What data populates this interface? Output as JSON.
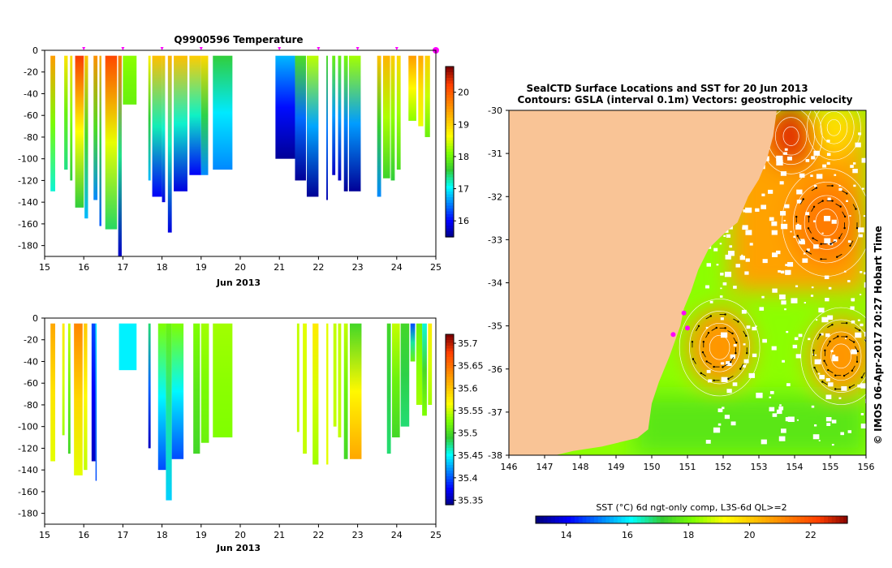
{
  "colors": {
    "land": "#f9c496",
    "axis": "#000000",
    "marker": "#ff00ff",
    "contour": "#ffffff",
    "vector": "#000000"
  },
  "colormap": [
    "#00007f",
    "#0000ff",
    "#007fff",
    "#00ffff",
    "#33cc33",
    "#7fff00",
    "#ffff00",
    "#ffbf00",
    "#ff7f00",
    "#ff3f00",
    "#7f0000"
  ],
  "chart_data": [
    {
      "id": "temperature",
      "type": "heatmap",
      "title": "Q9900596  Temperature",
      "xlabel": "Jun 2013",
      "x_ticks": [
        "15",
        "16",
        "17",
        "18",
        "19",
        "20",
        "21",
        "22",
        "23",
        "24",
        "25"
      ],
      "xlim": [
        15,
        25
      ],
      "ylim": [
        -190,
        0
      ],
      "y_ticks": [
        "0",
        "-20",
        "-40",
        "-60",
        "-80",
        "-100",
        "-120",
        "-140",
        "-160",
        "-180"
      ],
      "y_tick_values": [
        0,
        -20,
        -40,
        -60,
        -80,
        -100,
        -120,
        -140,
        -160,
        -180
      ],
      "colorbar": {
        "ticks": [
          "16",
          "17",
          "18",
          "19",
          "20"
        ],
        "tick_values": [
          16,
          17,
          18,
          19,
          20
        ],
        "range": [
          15.5,
          20.8
        ]
      },
      "profiles": [
        {
          "x": 15.15,
          "w": 0.12,
          "depth": -130,
          "top": 19.5,
          "bottom": 17.2
        },
        {
          "x": 15.5,
          "w": 0.09,
          "depth": -110,
          "top": 18.9,
          "bottom": 17.4
        },
        {
          "x": 15.65,
          "w": 0.06,
          "depth": -120,
          "top": 19.0,
          "bottom": 17.6
        },
        {
          "x": 15.78,
          "w": 0.22,
          "depth": -145,
          "top": 20.3,
          "bottom": 17.6
        },
        {
          "x": 16.02,
          "w": 0.09,
          "depth": -155,
          "top": 19.2,
          "bottom": 16.8
        },
        {
          "x": 16.25,
          "w": 0.1,
          "depth": -138,
          "top": 19.6,
          "bottom": 16.6
        },
        {
          "x": 16.4,
          "w": 0.05,
          "depth": -162,
          "top": 19.4,
          "bottom": 16.4
        },
        {
          "x": 16.55,
          "w": 0.3,
          "depth": -165,
          "top": 20.2,
          "bottom": 17.5
        },
        {
          "x": 16.88,
          "w": 0.09,
          "depth": -190,
          "top": 19.8,
          "bottom": 15.8
        },
        {
          "x": 17.0,
          "w": 0.35,
          "depth": -50,
          "top": 18.2,
          "bottom": 18.0
        },
        {
          "x": 17.65,
          "w": 0.06,
          "depth": -120,
          "top": 18.8,
          "bottom": 16.8
        },
        {
          "x": 17.75,
          "w": 0.25,
          "depth": -135,
          "top": 19.2,
          "bottom": 16.0
        },
        {
          "x": 18.0,
          "w": 0.08,
          "depth": -140,
          "top": 19.2,
          "bottom": 15.9
        },
        {
          "x": 18.15,
          "w": 0.1,
          "depth": -168,
          "top": 19.3,
          "bottom": 15.9
        },
        {
          "x": 18.3,
          "w": 0.35,
          "depth": -130,
          "top": 19.2,
          "bottom": 15.9
        },
        {
          "x": 18.7,
          "w": 0.3,
          "depth": -115,
          "top": 19.1,
          "bottom": 16.0
        },
        {
          "x": 19.0,
          "w": 0.18,
          "depth": -115,
          "top": 19.0,
          "bottom": 16.6
        },
        {
          "x": 19.3,
          "w": 0.5,
          "depth": -110,
          "top": 17.6,
          "bottom": 16.6
        },
        {
          "x": 20.9,
          "w": 0.5,
          "depth": -100,
          "top": 16.8,
          "bottom": 15.6
        },
        {
          "x": 21.4,
          "w": 0.28,
          "depth": -120,
          "top": 17.8,
          "bottom": 15.6
        },
        {
          "x": 21.7,
          "w": 0.3,
          "depth": -135,
          "top": 18.4,
          "bottom": 15.6
        },
        {
          "x": 22.2,
          "w": 0.04,
          "depth": -138,
          "top": 17.8,
          "bottom": 15.7
        },
        {
          "x": 22.35,
          "w": 0.08,
          "depth": -115,
          "top": 18.0,
          "bottom": 15.8
        },
        {
          "x": 22.5,
          "w": 0.08,
          "depth": -120,
          "top": 18.0,
          "bottom": 15.8
        },
        {
          "x": 22.65,
          "w": 0.1,
          "depth": -130,
          "top": 18.1,
          "bottom": 15.6
        },
        {
          "x": 22.78,
          "w": 0.3,
          "depth": -130,
          "top": 18.3,
          "bottom": 15.6
        },
        {
          "x": 23.5,
          "w": 0.1,
          "depth": -135,
          "top": 19.2,
          "bottom": 16.6
        },
        {
          "x": 23.65,
          "w": 0.18,
          "depth": -118,
          "top": 19.3,
          "bottom": 17.7
        },
        {
          "x": 23.85,
          "w": 0.1,
          "depth": -120,
          "top": 19.1,
          "bottom": 17.6
        },
        {
          "x": 24.0,
          "w": 0.1,
          "depth": -110,
          "top": 19.0,
          "bottom": 17.8
        },
        {
          "x": 24.3,
          "w": 0.2,
          "depth": -65,
          "top": 19.5,
          "bottom": 18.2
        },
        {
          "x": 24.55,
          "w": 0.13,
          "depth": -70,
          "top": 19.4,
          "bottom": 18.6
        },
        {
          "x": 24.72,
          "w": 0.13,
          "depth": -80,
          "top": 19.1,
          "bottom": 18.0
        }
      ],
      "markers": [
        16.0,
        17.0,
        18.0,
        19.0,
        21.0,
        22.0,
        23.0,
        24.0,
        25.0
      ]
    },
    {
      "id": "salinity",
      "type": "heatmap",
      "title": "",
      "xlabel": "Jun 2013",
      "x_ticks": [
        "15",
        "16",
        "17",
        "18",
        "19",
        "20",
        "21",
        "22",
        "23",
        "24",
        "25"
      ],
      "xlim": [
        15,
        25
      ],
      "ylim": [
        -190,
        0
      ],
      "y_ticks": [
        "0",
        "-20",
        "-40",
        "-60",
        "-80",
        "-100",
        "-120",
        "-140",
        "-160",
        "-180"
      ],
      "y_tick_values": [
        0,
        -20,
        -40,
        -60,
        -80,
        -100,
        -120,
        -140,
        -160,
        -180
      ],
      "colorbar": {
        "ticks": [
          "35.7",
          "35.65",
          "35.6",
          "35.55",
          "35.5",
          "35.45",
          "35.4",
          "35.35"
        ],
        "tick_values": [
          35.7,
          35.65,
          35.6,
          35.55,
          35.5,
          35.45,
          35.4,
          35.35
        ],
        "range": [
          35.34,
          35.72
        ]
      },
      "profiles": [
        {
          "x": 15.15,
          "w": 0.12,
          "depth": -132,
          "top": 35.62,
          "bottom": 35.56
        },
        {
          "x": 15.45,
          "w": 0.06,
          "depth": -108,
          "top": 35.58,
          "bottom": 35.54
        },
        {
          "x": 15.6,
          "w": 0.06,
          "depth": -125,
          "top": 35.55,
          "bottom": 35.5
        },
        {
          "x": 15.75,
          "w": 0.22,
          "depth": -145,
          "top": 35.64,
          "bottom": 35.56
        },
        {
          "x": 16.0,
          "w": 0.09,
          "depth": -140,
          "top": 35.6,
          "bottom": 35.55
        },
        {
          "x": 16.2,
          "w": 0.1,
          "depth": -132,
          "top": 35.4,
          "bottom": 35.36
        },
        {
          "x": 16.3,
          "w": 0.02,
          "depth": -150,
          "top": 35.45,
          "bottom": 35.4
        },
        {
          "x": 16.9,
          "w": 0.45,
          "depth": -48,
          "top": 35.45,
          "bottom": 35.45
        },
        {
          "x": 17.65,
          "w": 0.06,
          "depth": -120,
          "top": 35.48,
          "bottom": 35.36
        },
        {
          "x": 17.9,
          "w": 0.2,
          "depth": -140,
          "top": 35.53,
          "bottom": 35.4
        },
        {
          "x": 18.1,
          "w": 0.15,
          "depth": -168,
          "top": 35.52,
          "bottom": 35.44
        },
        {
          "x": 18.25,
          "w": 0.3,
          "depth": -130,
          "top": 35.53,
          "bottom": 35.4
        },
        {
          "x": 18.8,
          "w": 0.17,
          "depth": -125,
          "top": 35.53,
          "bottom": 35.5
        },
        {
          "x": 19.0,
          "w": 0.2,
          "depth": -115,
          "top": 35.54,
          "bottom": 35.52
        },
        {
          "x": 19.3,
          "w": 0.5,
          "depth": -110,
          "top": 35.54,
          "bottom": 35.53
        },
        {
          "x": 21.45,
          "w": 0.06,
          "depth": -105,
          "top": 35.55,
          "bottom": 35.55
        },
        {
          "x": 21.6,
          "w": 0.1,
          "depth": -125,
          "top": 35.56,
          "bottom": 35.55
        },
        {
          "x": 21.85,
          "w": 0.15,
          "depth": -135,
          "top": 35.58,
          "bottom": 35.54
        },
        {
          "x": 22.2,
          "w": 0.05,
          "depth": -135,
          "top": 35.56,
          "bottom": 35.56
        },
        {
          "x": 22.38,
          "w": 0.08,
          "depth": -100,
          "top": 35.55,
          "bottom": 35.55
        },
        {
          "x": 22.5,
          "w": 0.08,
          "depth": -110,
          "top": 35.55,
          "bottom": 35.55
        },
        {
          "x": 22.65,
          "w": 0.1,
          "depth": -130,
          "top": 35.55,
          "bottom": 35.5
        },
        {
          "x": 22.8,
          "w": 0.3,
          "depth": -130,
          "top": 35.5,
          "bottom": 35.62
        },
        {
          "x": 23.75,
          "w": 0.1,
          "depth": -125,
          "top": 35.5,
          "bottom": 35.48
        },
        {
          "x": 23.88,
          "w": 0.2,
          "depth": -110,
          "top": 35.55,
          "bottom": 35.5
        },
        {
          "x": 24.1,
          "w": 0.22,
          "depth": -100,
          "top": 35.5,
          "bottom": 35.48
        },
        {
          "x": 24.35,
          "w": 0.12,
          "depth": -40,
          "top": 35.4,
          "bottom": 35.52
        },
        {
          "x": 24.5,
          "w": 0.15,
          "depth": -80,
          "top": 35.52,
          "bottom": 35.54
        },
        {
          "x": 24.65,
          "w": 0.12,
          "depth": -90,
          "top": 35.46,
          "bottom": 35.53
        },
        {
          "x": 24.8,
          "w": 0.1,
          "depth": -80,
          "top": 35.58,
          "bottom": 35.54
        }
      ]
    },
    {
      "id": "sst-map",
      "type": "heatmap",
      "title_line1": "SealCTD Surface Locations and SST for 20 Jun 2013",
      "title_line2": "Contours: GSLA (interval 0.1m) Vectors: geostrophic velocity",
      "x_ticks": [
        "146",
        "147",
        "148",
        "149",
        "150",
        "151",
        "152",
        "153",
        "154",
        "155",
        "156"
      ],
      "xlim": [
        146,
        156
      ],
      "y_ticks": [
        "-30",
        "-31",
        "-32",
        "-33",
        "-34",
        "-35",
        "-36",
        "-37",
        "-38"
      ],
      "ylim": [
        -38,
        -30
      ],
      "colorbar_label": "SST (°C) 6d ngt-only comp, L3S-6d QL>=2",
      "colorbar": {
        "ticks": [
          "14",
          "16",
          "18",
          "20",
          "22"
        ],
        "tick_values": [
          14,
          16,
          18,
          20,
          22
        ],
        "range": [
          13,
          23.2
        ]
      },
      "coastline": [
        [
          153.5,
          -30
        ],
        [
          153.4,
          -30.6
        ],
        [
          153.2,
          -31.2
        ],
        [
          153.0,
          -31.6
        ],
        [
          152.7,
          -32.0
        ],
        [
          152.4,
          -32.6
        ],
        [
          152.1,
          -32.8
        ],
        [
          151.6,
          -33.2
        ],
        [
          151.3,
          -33.7
        ],
        [
          151.1,
          -34.2
        ],
        [
          150.9,
          -34.6
        ],
        [
          150.8,
          -35.0
        ],
        [
          150.5,
          -35.7
        ],
        [
          150.2,
          -36.3
        ],
        [
          150.0,
          -36.8
        ],
        [
          149.9,
          -37.4
        ],
        [
          149.6,
          -37.6
        ],
        [
          148.6,
          -37.8
        ],
        [
          147.8,
          -37.9
        ],
        [
          147.3,
          -38.0
        ]
      ],
      "eddies": [
        {
          "lon": 151.9,
          "lat": -35.5,
          "temp": 20.8,
          "r": 0.9
        },
        {
          "lon": 154.9,
          "lat": -32.6,
          "temp": 21.2,
          "r": 1.0
        },
        {
          "lon": 155.3,
          "lat": -35.7,
          "temp": 20.8,
          "r": 0.9
        },
        {
          "lon": 155.1,
          "lat": -30.4,
          "temp": 19.6,
          "r": 0.6
        },
        {
          "lon": 153.9,
          "lat": -30.6,
          "temp": 22.4,
          "r": 0.7
        }
      ],
      "seal_locations": [
        [
          150.9,
          -34.7
        ],
        [
          151.0,
          -35.05
        ],
        [
          150.6,
          -35.2
        ]
      ]
    }
  ],
  "watermark": "©  IMOS 06-Apr-2017 20:27 Hobart Time"
}
